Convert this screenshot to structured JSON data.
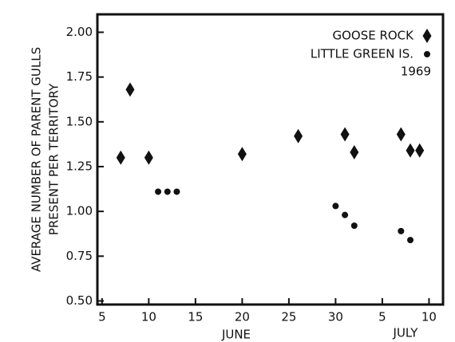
{
  "chart_data": {
    "type": "scatter",
    "ylabel": [
      "AVERAGE NUMBER OF PARENT GULLS",
      "PRESENT PER TERRITORY"
    ],
    "annotations": [
      "1969",
      "JUNE",
      "JULY"
    ],
    "xlim": [
      4.5,
      41.5
    ],
    "xticks": [
      5,
      10,
      15,
      20,
      25,
      30,
      {
        "value": 35,
        "label": "5"
      },
      {
        "value": 40,
        "label": "10"
      }
    ],
    "ylim": [
      0.48,
      2.1
    ],
    "yticks": [
      {
        "value": 2,
        "label": "2.00"
      },
      1.75,
      {
        "value": 1.5,
        "label": "1.50"
      },
      1.25,
      {
        "value": 1,
        "label": "1.00"
      },
      0.75,
      {
        "value": 0.5,
        "label": "0.50"
      }
    ],
    "legend": "top-right",
    "series": [
      {
        "name": "GOOSE ROCK",
        "color": "#111111",
        "marker": "diamond",
        "x": [
          7,
          8,
          10,
          20,
          26,
          31,
          32,
          37,
          38,
          39
        ],
        "values": [
          1.3,
          1.68,
          1.3,
          1.32,
          1.42,
          1.43,
          1.33,
          1.43,
          1.34,
          1.34
        ]
      },
      {
        "name": "LITTLE GREEN IS.",
        "color": "#111111",
        "marker": "circle",
        "x": [
          11,
          12,
          13,
          30,
          31,
          32,
          37,
          38
        ],
        "values": [
          1.11,
          1.11,
          1.11,
          1.03,
          0.98,
          0.92,
          0.89,
          0.84
        ]
      }
    ]
  }
}
